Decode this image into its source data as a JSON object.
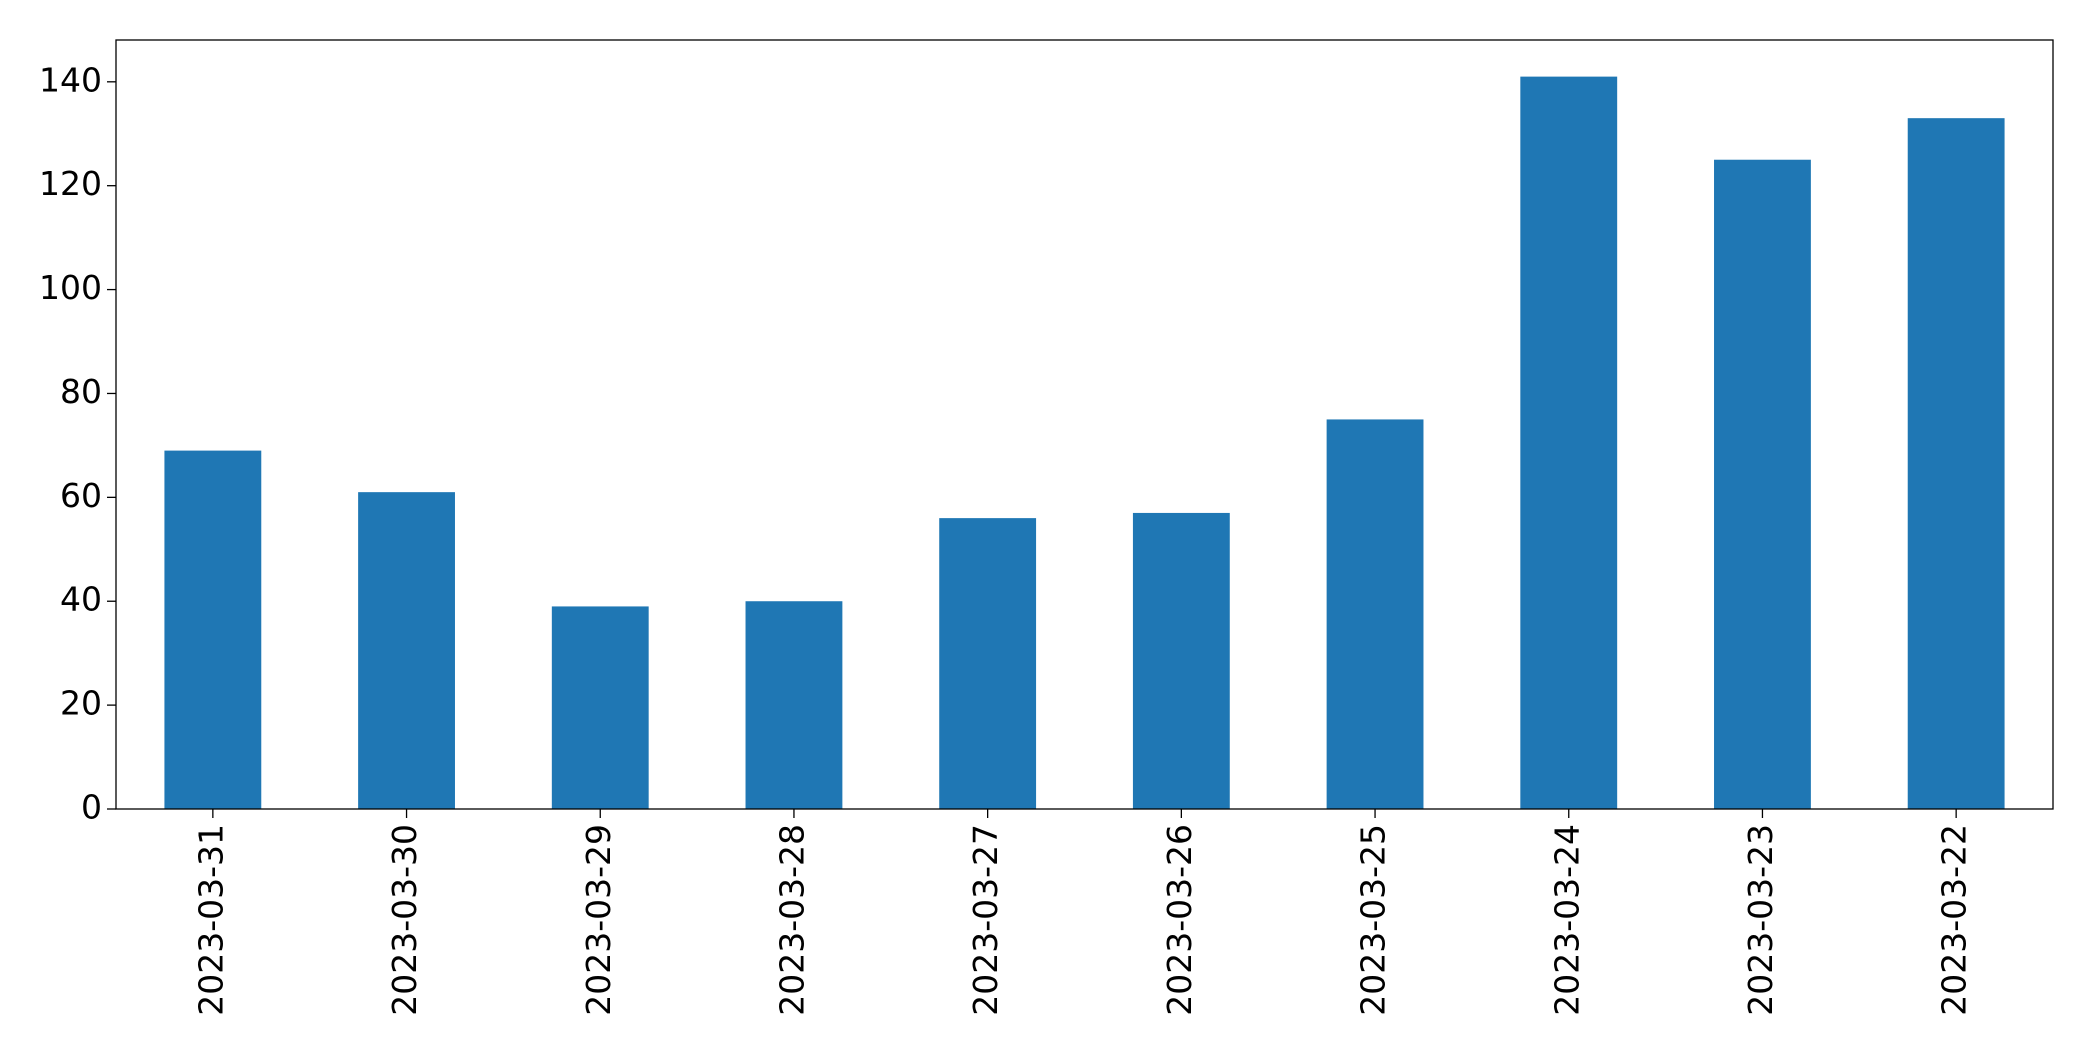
{
  "chart_data": {
    "type": "bar",
    "categories": [
      "2023-03-31",
      "2023-03-30",
      "2023-03-29",
      "2023-03-28",
      "2023-03-27",
      "2023-03-26",
      "2023-03-25",
      "2023-03-24",
      "2023-03-23",
      "2023-03-22"
    ],
    "values": [
      69,
      61,
      39,
      40,
      56,
      57,
      75,
      141,
      125,
      133
    ],
    "color": "#1f77b4",
    "ylim": [
      0,
      148.05
    ],
    "yticks": [
      0,
      20,
      40,
      60,
      80,
      100,
      120,
      140
    ],
    "grid": false
  }
}
